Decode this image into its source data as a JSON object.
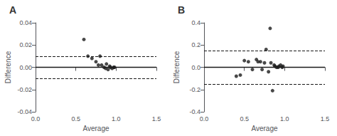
{
  "chart_data": [
    {
      "type": "scatter",
      "title": "A",
      "x": [
        0.6,
        0.65,
        0.7,
        0.75,
        0.78,
        0.8,
        0.82,
        0.85,
        0.87,
        0.88,
        0.9,
        0.92,
        0.93,
        0.95,
        0.97,
        0.98
      ],
      "values": [
        0.025,
        0.01,
        0.008,
        0.005,
        0.002,
        0.01,
        0.002,
        0.0,
        -0.001,
        0.003,
        -0.002,
        0.001,
        0.0,
        -0.001,
        0.0,
        0.0
      ],
      "hlines": [
        {
          "y": 0.0,
          "line_style": "solid"
        },
        {
          "y": 0.01,
          "line_style": "dashed"
        },
        {
          "y": -0.01,
          "line_style": "dashed"
        }
      ],
      "color": "#1a1a1a",
      "marker": "circle",
      "grid": false,
      "xlim": [
        0.0,
        1.5
      ],
      "ylim": [
        -0.04,
        0.04
      ],
      "xticks": [
        {
          "value": 0.0,
          "label": "0.0"
        },
        0.5,
        {
          "value": 1.0,
          "label": "1.0"
        },
        1.5
      ],
      "yticks": [
        -0.04,
        -0.02,
        {
          "value": 0.0,
          "label": "0.00"
        },
        0.02,
        0.04
      ],
      "xlabel": "Average",
      "ylabel": "Difference"
    },
    {
      "type": "scatter",
      "title": "B",
      "x": [
        0.4,
        0.45,
        0.5,
        0.55,
        0.6,
        0.65,
        0.67,
        0.7,
        0.72,
        0.75,
        0.77,
        0.8,
        0.82,
        0.83,
        0.85,
        0.87,
        0.88,
        0.9,
        0.92,
        0.93,
        0.95,
        0.97,
        0.98
      ],
      "values": [
        -0.08,
        -0.07,
        0.06,
        0.05,
        -0.02,
        0.07,
        0.05,
        0.05,
        -0.02,
        0.04,
        0.16,
        -0.04,
        0.35,
        0.04,
        -0.21,
        0.02,
        0.01,
        0.0,
        0.0,
        0.01,
        0.02,
        0.0,
        0.01
      ],
      "hlines": [
        {
          "y": 0.0,
          "line_style": "solid"
        },
        {
          "y": 0.155,
          "line_style": "dashed"
        },
        {
          "y": -0.155,
          "line_style": "dashed"
        }
      ],
      "color": "#1a1a1a",
      "marker": "circle",
      "grid": false,
      "xlim": [
        0.0,
        1.5
      ],
      "ylim": [
        -0.4,
        0.4
      ],
      "xticks": [
        {
          "value": 0.0,
          "label": "0.0"
        },
        0.5,
        {
          "value": 1.0,
          "label": "1.0"
        },
        1.5
      ],
      "yticks": [
        -0.4,
        -0.2,
        {
          "value": 0.0,
          "label": "0.0"
        },
        0.2,
        0.4
      ],
      "xlabel": "Average",
      "ylabel": "Difference"
    }
  ]
}
